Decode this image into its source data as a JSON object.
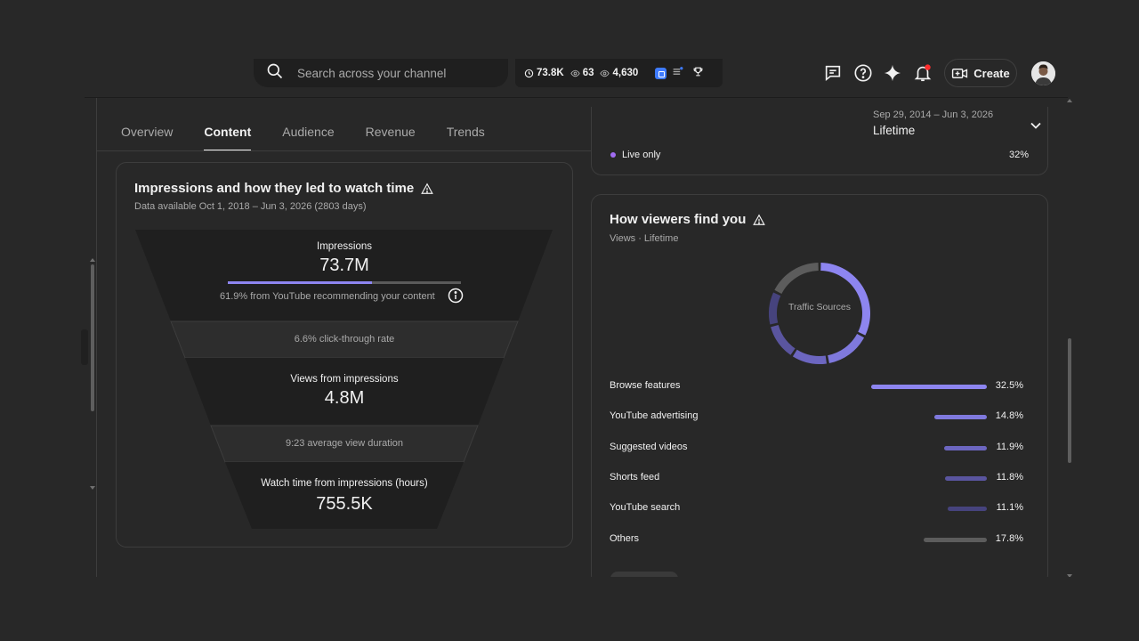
{
  "search": {
    "placeholder": "Search across your channel"
  },
  "stats": {
    "subscribers": "73.8K",
    "views_a": "63",
    "views_b": "4,630"
  },
  "header": {
    "create_label": "Create"
  },
  "tabs": [
    "Overview",
    "Content",
    "Audience",
    "Revenue",
    "Trends"
  ],
  "active_tab": "Content",
  "date": {
    "range": "Sep 29, 2014 – Jun 3, 2026",
    "label": "Lifetime"
  },
  "top_card": {
    "live_label": "Live only",
    "live_pct": "32%",
    "live_color": "#a16cf2"
  },
  "funnel": {
    "title": "Impressions and how they led to watch time",
    "subtitle": "Data available Oct 1, 2018 – Jun 3, 2026 (2803 days)",
    "impressions_label": "Impressions",
    "impressions_value": "73.7M",
    "recommend_fraction": 0.619,
    "recommend_note": "61.9% from YouTube recommending your content",
    "ctr": "6.6% click-through rate",
    "views_label": "Views from impressions",
    "views_value": "4.8M",
    "avd": "9:23 average view duration",
    "watch_label": "Watch time from impressions (hours)",
    "watch_value": "755.5K"
  },
  "traffic": {
    "title": "How viewers find you",
    "subtitle": "Views · Lifetime",
    "donut_label": "Traffic Sources",
    "sources": [
      {
        "name": "Browse features",
        "pct": "32.5%",
        "value": 32.5,
        "color": "#8d85f0"
      },
      {
        "name": "YouTube advertising",
        "pct": "14.8%",
        "value": 14.8,
        "color": "#7f79dd"
      },
      {
        "name": "Suggested videos",
        "pct": "11.9%",
        "value": 11.9,
        "color": "#6c66c0"
      },
      {
        "name": "Shorts feed",
        "pct": "11.8%",
        "value": 11.8,
        "color": "#5a559f"
      },
      {
        "name": "YouTube search",
        "pct": "11.1%",
        "value": 11.1,
        "color": "#46437d"
      },
      {
        "name": "Others",
        "pct": "17.8%",
        "value": 17.8,
        "color": "#5c5c5c"
      }
    ]
  }
}
